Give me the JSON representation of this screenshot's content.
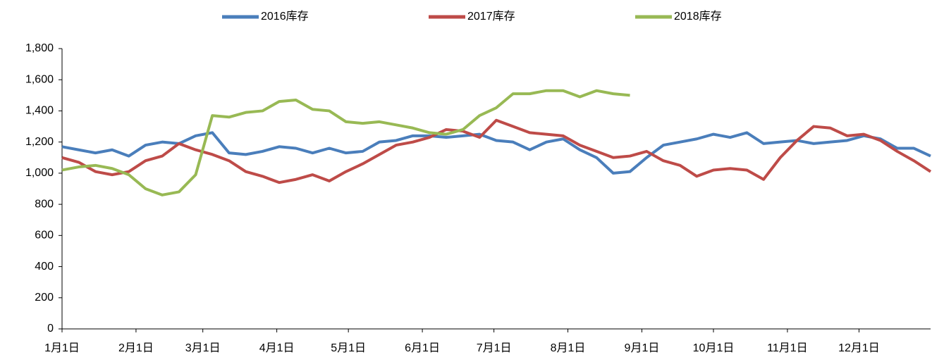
{
  "chart_data": {
    "type": "line",
    "x": [
      0,
      7,
      14,
      21,
      28,
      35,
      42,
      49,
      56,
      63,
      70,
      77,
      84,
      91,
      98,
      105,
      112,
      119,
      126,
      133,
      140,
      147,
      154,
      161,
      168,
      175,
      182,
      189,
      196,
      203,
      210,
      217,
      224,
      231,
      238,
      245,
      252,
      259,
      266,
      273,
      280,
      287,
      294,
      301,
      308,
      315,
      322,
      329,
      336,
      343,
      350,
      357,
      364
    ],
    "series": [
      {
        "name": "2016库存",
        "color": "#4a7ebb",
        "values": [
          1170,
          1150,
          1130,
          1150,
          1110,
          1180,
          1200,
          1190,
          1240,
          1260,
          1130,
          1120,
          1140,
          1170,
          1160,
          1130,
          1160,
          1130,
          1140,
          1200,
          1210,
          1240,
          1240,
          1230,
          1240,
          1250,
          1210,
          1200,
          1150,
          1200,
          1220,
          1150,
          1100,
          1000,
          1010,
          1100,
          1180,
          1200,
          1220,
          1250,
          1230,
          1260,
          1190,
          1200,
          1210,
          1190,
          1200,
          1210,
          1240,
          1220,
          1160,
          1160,
          1110
        ]
      },
      {
        "name": "2017库存",
        "color": "#be4b48",
        "values": [
          1100,
          1070,
          1010,
          990,
          1010,
          1080,
          1110,
          1190,
          1150,
          1120,
          1080,
          1010,
          980,
          940,
          960,
          990,
          950,
          1010,
          1060,
          1120,
          1180,
          1200,
          1230,
          1280,
          1270,
          1230,
          1340,
          1300,
          1260,
          1250,
          1240,
          1180,
          1140,
          1100,
          1110,
          1140,
          1080,
          1050,
          980,
          1020,
          1030,
          1020,
          960,
          1100,
          1210,
          1300,
          1290,
          1240,
          1250,
          1210,
          1140,
          1080,
          1010
        ]
      },
      {
        "name": "2018库存",
        "color": "#98b954",
        "values": [
          1020,
          1040,
          1050,
          1030,
          990,
          900,
          860,
          880,
          990,
          1370,
          1360,
          1390,
          1400,
          1460,
          1470,
          1410,
          1400,
          1330,
          1320,
          1330,
          1310,
          1290,
          1260,
          1250,
          1280,
          1370,
          1420,
          1510,
          1510,
          1530,
          1530,
          1490,
          1530,
          1510,
          1500,
          null,
          null,
          null,
          null,
          null,
          null,
          null,
          null,
          null,
          null,
          null,
          null,
          null,
          null,
          null,
          null,
          null,
          null
        ]
      }
    ],
    "xlim": [
      0,
      364
    ],
    "xticks": [
      {
        "value": 0,
        "label": "1月1日"
      },
      {
        "value": 31,
        "label": "2月1日"
      },
      {
        "value": 59,
        "label": "3月1日"
      },
      {
        "value": 90,
        "label": "4月1日"
      },
      {
        "value": 120,
        "label": "5月1日"
      },
      {
        "value": 151,
        "label": "6月1日"
      },
      {
        "value": 181,
        "label": "7月1日"
      },
      {
        "value": 212,
        "label": "8月1日"
      },
      {
        "value": 243,
        "label": "9月1日"
      },
      {
        "value": 273,
        "label": "10月1日"
      },
      {
        "value": 304,
        "label": "11月1日"
      },
      {
        "value": 334,
        "label": "12月1日"
      }
    ],
    "ylim": [
      0,
      1800
    ],
    "yticks": [
      0,
      200,
      400,
      600,
      800,
      {
        "value": 1000,
        "label": "1,000"
      },
      {
        "value": 1200,
        "label": "1,200"
      },
      {
        "value": 1400,
        "label": "1,400"
      },
      {
        "value": 1600,
        "label": "1,600"
      },
      {
        "value": 1800,
        "label": "1,800"
      }
    ],
    "legend": "top"
  }
}
